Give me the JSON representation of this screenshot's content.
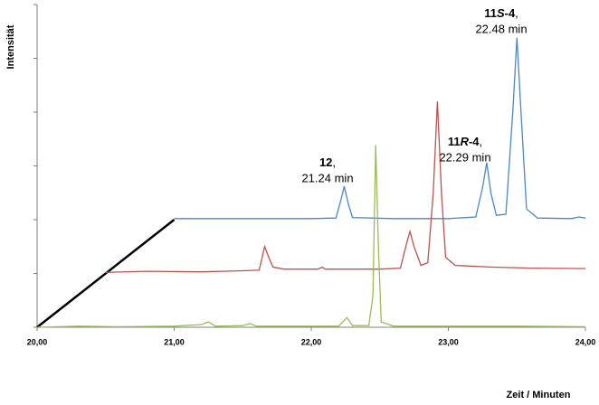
{
  "chart_data": {
    "type": "line",
    "x_label": "Zeit / Minuten",
    "y_label": "Intensität",
    "xlim": [
      20,
      24
    ],
    "xticks": [
      {
        "value": 20,
        "label": "20,00"
      },
      {
        "value": 21,
        "label": "21,00"
      },
      {
        "value": 22,
        "label": "22,00"
      },
      {
        "value": 23,
        "label": "23,00"
      },
      {
        "value": 24,
        "label": "24,00"
      }
    ],
    "ylim": [
      0,
      6
    ],
    "yticks": [
      0,
      1,
      2,
      3,
      4,
      5,
      6
    ],
    "show_ytick_labels": false,
    "offset_line": {
      "color": "#000000",
      "x": [
        20,
        21
      ],
      "y": [
        0,
        2
      ]
    },
    "series": [
      {
        "color": "#4a86c8",
        "x": [
          21.0,
          21.5,
          22.0,
          22.18,
          22.22,
          22.24,
          22.27,
          22.3,
          22.6,
          23.0,
          23.2,
          23.25,
          23.28,
          23.31,
          23.35,
          23.42,
          23.47,
          23.5,
          23.53,
          23.57,
          23.65,
          23.9,
          23.95,
          24.0
        ],
        "values": [
          2.02,
          2.02,
          2.02,
          2.03,
          2.4,
          2.62,
          2.3,
          2.04,
          2.02,
          2.02,
          2.05,
          2.6,
          3.06,
          2.5,
          2.08,
          2.1,
          4.0,
          5.38,
          4.0,
          2.2,
          2.03,
          2.02,
          2.05,
          2.03
        ]
      },
      {
        "color": "#c0504d",
        "x": [
          20.5,
          20.8,
          21.2,
          21.5,
          21.62,
          21.66,
          21.69,
          21.72,
          21.8,
          22.05,
          22.08,
          22.1,
          22.5,
          22.65,
          22.7,
          22.72,
          22.75,
          22.8,
          22.85,
          22.89,
          22.92,
          22.95,
          22.98,
          23.05,
          23.3,
          23.6,
          24.0
        ],
        "values": [
          1.02,
          1.04,
          1.03,
          1.05,
          1.06,
          1.5,
          1.3,
          1.12,
          1.08,
          1.08,
          1.12,
          1.08,
          1.08,
          1.1,
          1.6,
          1.78,
          1.5,
          1.15,
          1.2,
          2.5,
          4.2,
          2.5,
          1.3,
          1.15,
          1.12,
          1.1,
          1.09
        ]
      },
      {
        "color": "#9bbb59",
        "x": [
          20.0,
          20.3,
          20.6,
          21.0,
          21.2,
          21.25,
          21.3,
          21.5,
          21.55,
          21.6,
          22.0,
          22.2,
          22.26,
          22.3,
          22.42,
          22.45,
          22.47,
          22.49,
          22.51,
          22.6,
          23.0,
          23.5,
          24.0
        ],
        "values": [
          0,
          0.02,
          0.01,
          0.02,
          0.05,
          0.1,
          0.02,
          0.03,
          0.07,
          0.02,
          0.02,
          0.02,
          0.18,
          0.03,
          0.03,
          0.6,
          3.39,
          1.5,
          0.1,
          0.02,
          0.02,
          0.02,
          0.01
        ]
      }
    ],
    "annotations": [
      {
        "name": [
          "12"
        ],
        "punct": ",",
        "time": "21.24 min"
      },
      {
        "name": [
          "11",
          "R",
          "-4"
        ],
        "punct": ",",
        "time": "22.29 min"
      },
      {
        "name": [
          "11",
          "S",
          "-4"
        ],
        "punct": ",",
        "time": "22.48 min"
      }
    ]
  }
}
